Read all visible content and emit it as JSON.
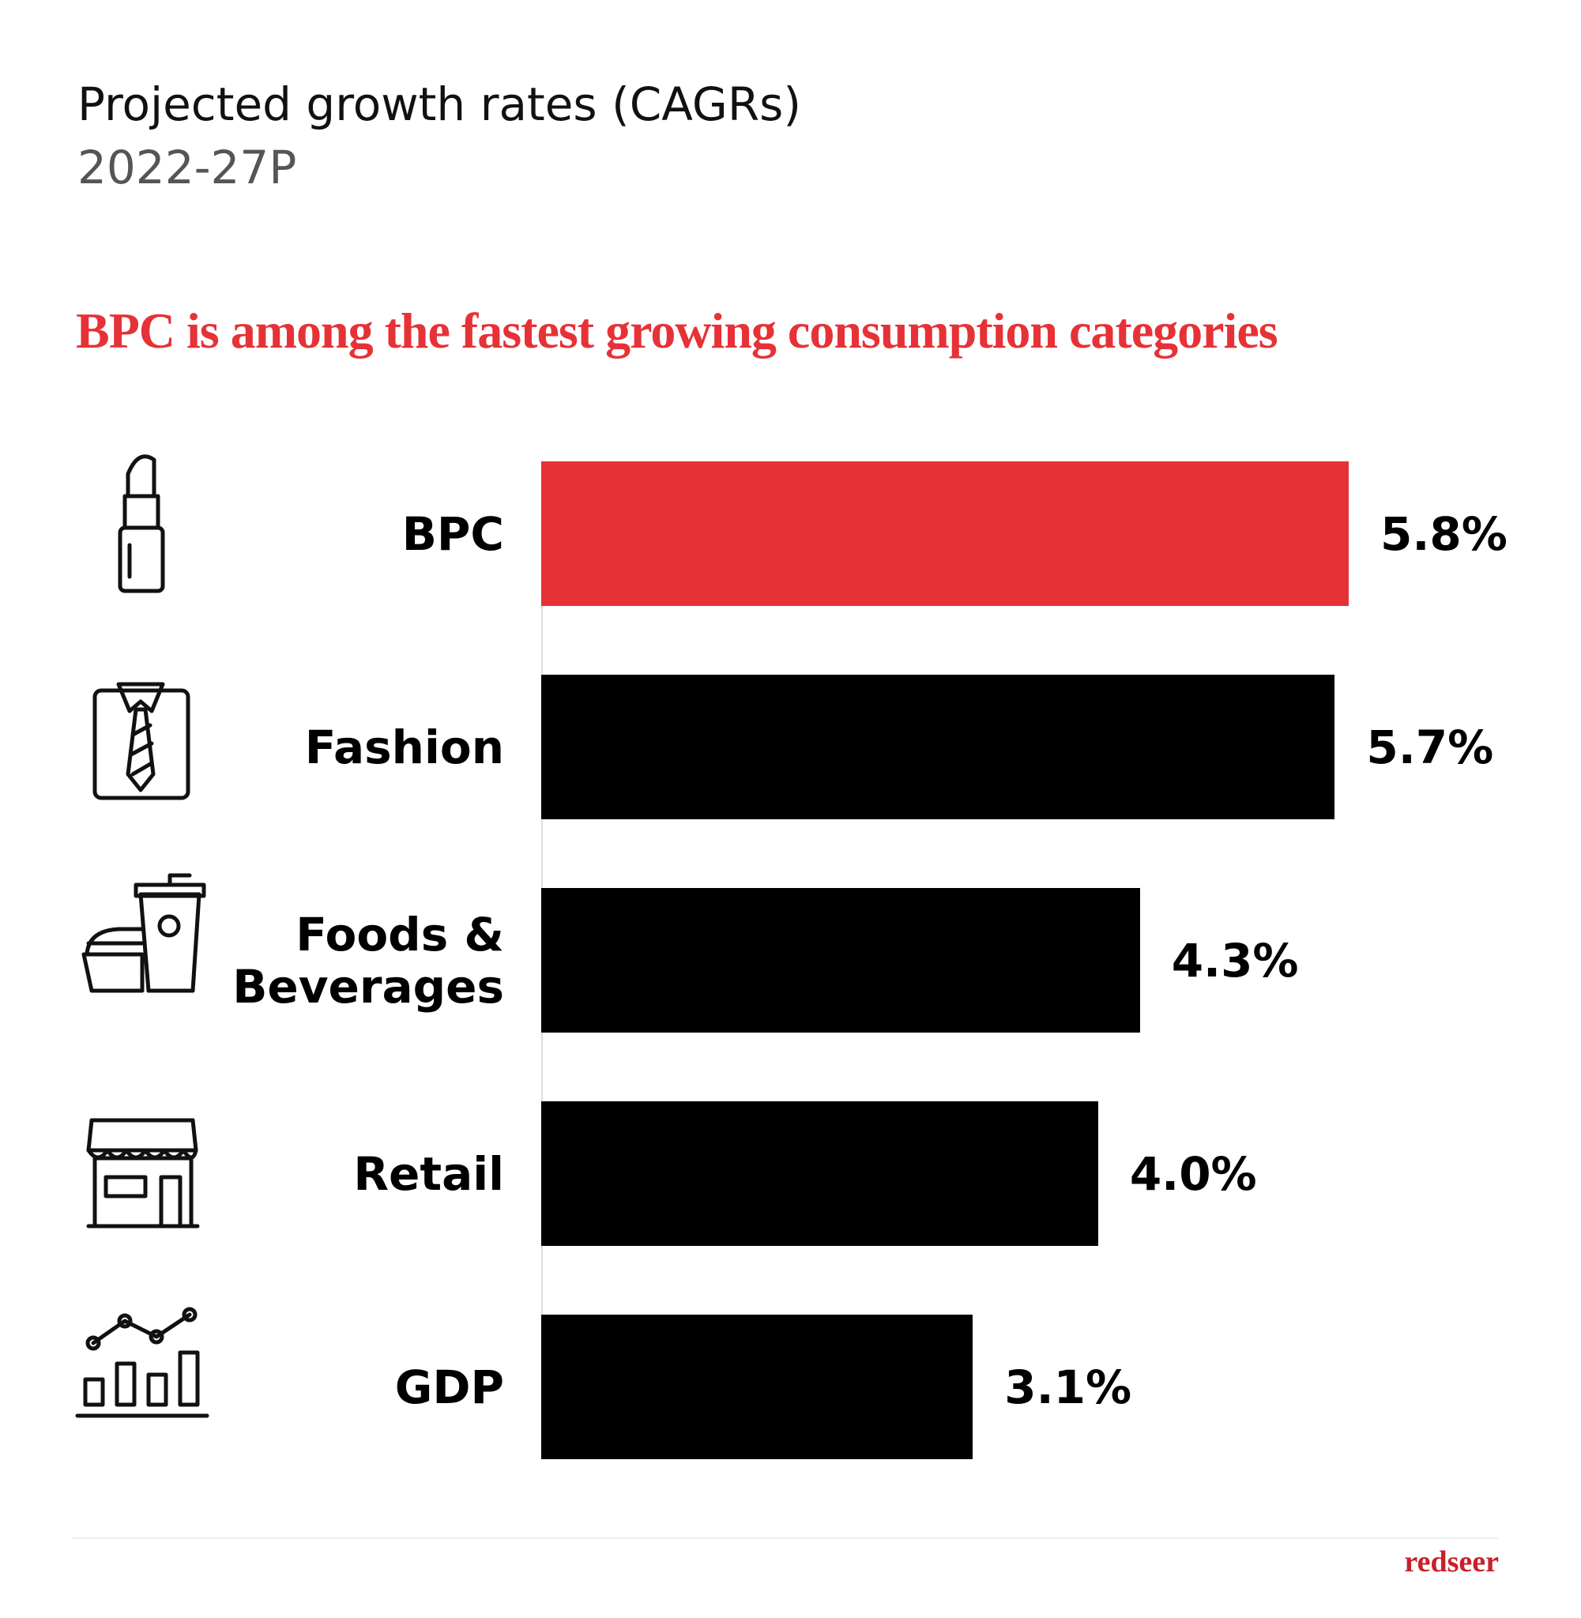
{
  "chart_data": {
    "type": "bar",
    "orientation": "horizontal",
    "title": "Projected growth rates (CAGRs)",
    "subtitle": "2022-27P",
    "headline": "BPC is among the fastest growing consumption categories",
    "categories": [
      "BPC",
      "Fashion",
      "Foods & Beverages",
      "Retail",
      "GDP"
    ],
    "values": [
      5.8,
      5.7,
      4.3,
      4.0,
      3.1
    ],
    "value_labels": [
      "5.8%",
      "5.7%",
      "4.3%",
      "4.0%",
      "3.1%"
    ],
    "colors": [
      "#e63237",
      "#000000",
      "#000000",
      "#000000",
      "#000000"
    ],
    "source": "redseer"
  }
}
